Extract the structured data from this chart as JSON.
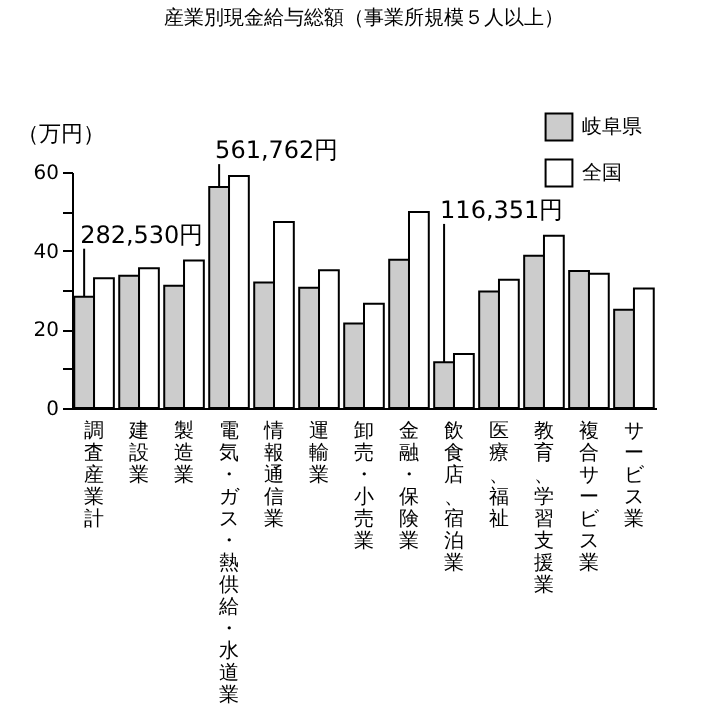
{
  "chart_data": {
    "type": "bar",
    "title": "産業別現金給与総額（事業所規模５人以上）",
    "ylabel": "（万円）",
    "categories": [
      "調査産業計",
      "建設業",
      "製造業",
      "電気・ガス・熱供給・水道業",
      "情報通信業",
      "運輸業",
      "卸売・小売業",
      "金融・保険業",
      "飲食店、宿泊業",
      "医療、福祉",
      "教育、学習支援業",
      "複合サービス業",
      "サービス業"
    ],
    "series": [
      {
        "name": "岐阜県",
        "color": "#cccccc",
        "values": [
          28.3,
          33.6,
          31.1,
          56.2,
          31.9,
          30.6,
          21.5,
          37.7,
          11.6,
          29.6,
          38.7,
          34.8,
          25.0
        ]
      },
      {
        "name": "全国",
        "color": "#ffffff",
        "values": [
          33.0,
          35.5,
          37.5,
          59.0,
          47.3,
          35.0,
          26.5,
          49.8,
          13.7,
          32.6,
          43.8,
          34.1,
          30.4
        ]
      }
    ],
    "annotations": [
      {
        "text": "282,530円",
        "x": "調査産業計",
        "y": 28.253
      },
      {
        "text": "561,762円",
        "x": "電気・ガス・熱供給・水道業",
        "y": 56.1762
      },
      {
        "text": "116,351円",
        "x": "飲食店、宿泊業",
        "y": 11.6351
      }
    ],
    "ylim": [
      0,
      60
    ],
    "yticks": [
      0,
      {
        "value": 10,
        "label": null
      },
      20,
      {
        "value": 30,
        "label": null
      },
      40,
      {
        "value": 50,
        "label": null
      },
      60
    ],
    "grid": false,
    "legend": "top right"
  }
}
